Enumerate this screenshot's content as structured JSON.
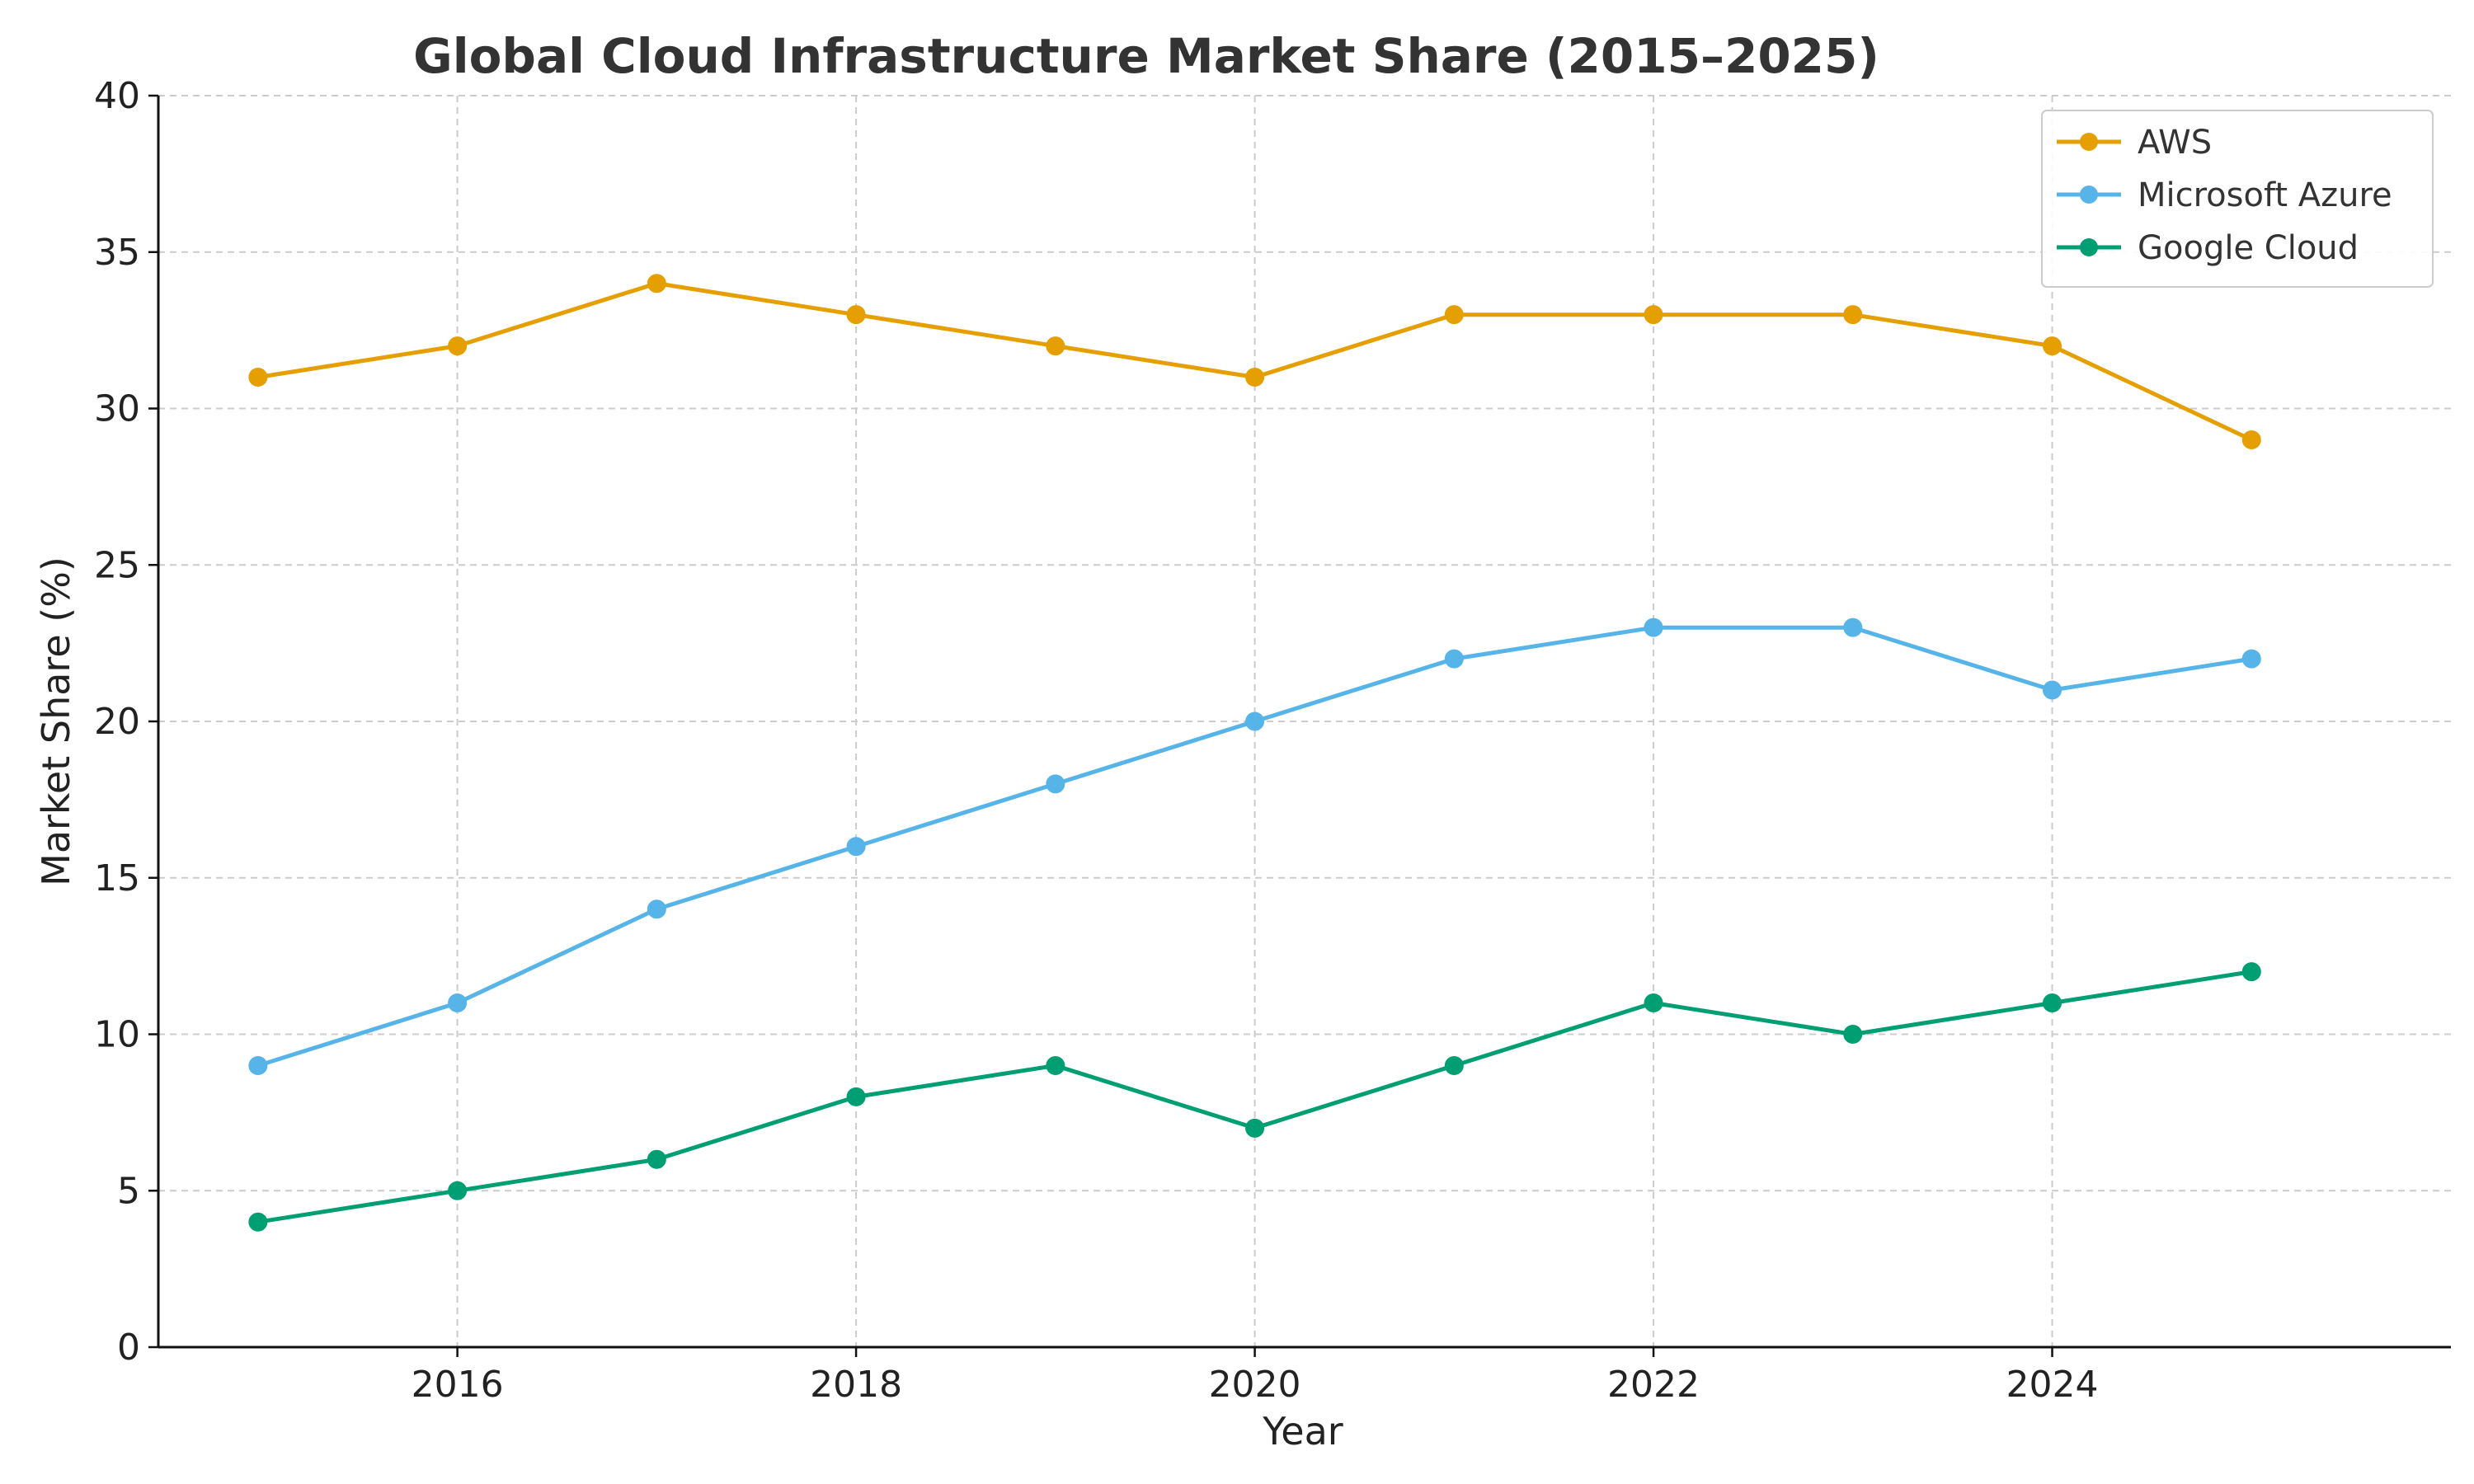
{
  "chart_data": {
    "type": "line",
    "title": "Global Cloud Infrastructure Market Share (2015–2025)",
    "xlabel": "Year",
    "ylabel": "Market Share (%)",
    "x": [
      2015,
      2016,
      2017,
      2018,
      2019,
      2020,
      2021,
      2022,
      2023,
      2024,
      2025
    ],
    "xlim": [
      2014.5,
      2026.0
    ],
    "ylim": [
      0,
      40
    ],
    "x_ticks": [
      2016,
      2018,
      2020,
      2022,
      2024
    ],
    "y_ticks": [
      0,
      5,
      10,
      15,
      20,
      25,
      30,
      35,
      40
    ],
    "grid": true,
    "legend_position": "top-right",
    "series": [
      {
        "name": "AWS",
        "color": "#E69F00",
        "values": [
          31,
          32,
          34,
          33,
          32,
          31,
          33,
          33,
          33,
          32,
          29
        ]
      },
      {
        "name": "Microsoft Azure",
        "color": "#56B4E9",
        "values": [
          9,
          11,
          14,
          16,
          18,
          20,
          22,
          23,
          23,
          21,
          22
        ]
      },
      {
        "name": "Google Cloud",
        "color": "#009E73",
        "values": [
          4,
          5,
          6,
          8,
          9,
          7,
          9,
          11,
          10,
          11,
          12
        ]
      }
    ]
  }
}
